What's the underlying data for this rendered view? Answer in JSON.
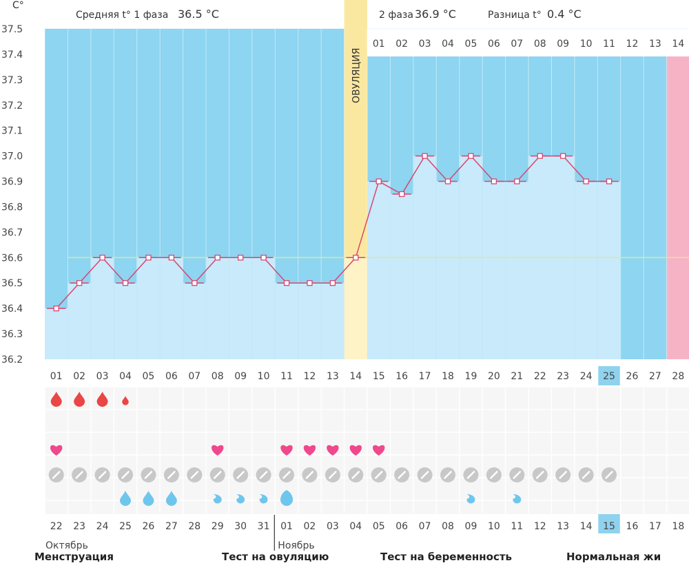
{
  "header": {
    "unit": "C°",
    "phase1_label": "Средняя t° 1 фаза",
    "phase1_value": "36.5 °C",
    "phase2_label": "2 фаза",
    "phase2_value": "36.9 °C",
    "diff_label": "Разница t°",
    "diff_value": "0.4 °C",
    "ovulation_label": "ОВУЛЯЦИЯ"
  },
  "colors": {
    "bg": "#8dd5f1",
    "column": "#c8eafb",
    "ovulation": "#fbe8a0",
    "pink": "#f7b3c6",
    "line": "#d9456f",
    "coverline": "#e6e58a",
    "drop": "#e94645",
    "heart": "#f0488d",
    "mucus": "#6ec6ec",
    "test": "#c8c8c8",
    "today": "#8fd2ee"
  },
  "chart_data": {
    "type": "line",
    "title": "Средняя t° 1 фаза 36.5 °C / 2 фаза 36.9 °C / Разница t° 0.4 °C",
    "ylabel": "C°",
    "ylim": [
      36.2,
      37.5
    ],
    "yticks": [
      "36.2",
      "36.3",
      "36.4",
      "36.5",
      "36.6",
      "36.7",
      "36.8",
      "36.9",
      "37.0",
      "37.1",
      "37.2",
      "37.3",
      "37.4",
      "37.5"
    ],
    "coverline": 36.6,
    "cycle_days": [
      "01",
      "02",
      "03",
      "04",
      "05",
      "06",
      "07",
      "08",
      "09",
      "10",
      "11",
      "12",
      "13",
      "14",
      "15",
      "16",
      "17",
      "18",
      "19",
      "20",
      "21",
      "22",
      "23",
      "24",
      "25",
      "26",
      "27",
      "28"
    ],
    "temperatures": [
      36.4,
      36.5,
      36.6,
      36.5,
      36.6,
      36.6,
      36.5,
      36.6,
      36.6,
      36.6,
      36.5,
      36.5,
      36.5,
      36.6,
      36.9,
      36.85,
      37.0,
      36.9,
      37.0,
      36.9,
      36.9,
      37.0,
      37.0,
      36.9,
      36.9,
      null,
      null,
      null
    ],
    "ovulation_day": 14,
    "today_day": 25,
    "luteal_days": [
      "01",
      "02",
      "03",
      "04",
      "05",
      "06",
      "07",
      "08",
      "09",
      "10",
      "11",
      "12",
      "13",
      "14"
    ],
    "calendar_dates": [
      "22",
      "23",
      "24",
      "25",
      "26",
      "27",
      "28",
      "29",
      "30",
      "31",
      "01",
      "02",
      "03",
      "04",
      "05",
      "06",
      "07",
      "08",
      "09",
      "10",
      "11",
      "12",
      "13",
      "14",
      "15",
      "16",
      "17",
      "18"
    ],
    "weekend_flags": [
      false,
      false,
      false,
      true,
      true,
      false,
      false,
      false,
      false,
      false,
      true,
      true,
      false,
      false,
      false,
      false,
      false,
      true,
      true,
      false,
      false,
      false,
      false,
      false,
      false,
      true,
      false,
      false
    ],
    "months": [
      "Октябрь",
      "Ноябрь"
    ],
    "menstruation": [
      3,
      3,
      3,
      1,
      0,
      0,
      0,
      0,
      0,
      0,
      0,
      0,
      0,
      0,
      0,
      0,
      0,
      0,
      0,
      0,
      0,
      0,
      0,
      0,
      0,
      0,
      0,
      0
    ],
    "intercourse": [
      1,
      0,
      0,
      0,
      0,
      0,
      0,
      1,
      0,
      0,
      1,
      1,
      1,
      1,
      1,
      0,
      0,
      0,
      0,
      0,
      0,
      0,
      0,
      0,
      0,
      0,
      0,
      0
    ],
    "tests_done": [
      1,
      1,
      1,
      1,
      1,
      1,
      1,
      1,
      1,
      1,
      1,
      1,
      1,
      1,
      1,
      1,
      1,
      1,
      1,
      1,
      1,
      1,
      1,
      1,
      1,
      0,
      0,
      0
    ],
    "mucus": [
      0,
      0,
      0,
      1,
      1,
      1,
      0,
      2,
      2,
      2,
      3,
      0,
      0,
      0,
      0,
      0,
      0,
      0,
      2,
      0,
      2,
      0,
      0,
      0,
      0,
      0,
      0,
      0
    ]
  },
  "legend": [
    "Менструация",
    "Тест на овуляцию",
    "Тест на беременность",
    "Нормальная жи"
  ]
}
